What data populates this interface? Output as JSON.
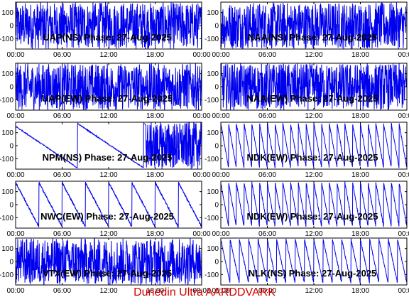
{
  "footer": "Dunedin Ultra AARDDVARK",
  "colors": {
    "trace": "#0000ee",
    "footer": "#d40000",
    "axis": "#000000"
  },
  "chart_data": [
    {
      "type": "line",
      "title": "UAP(NS) Phase: 27-Aug-2025",
      "ylim": [
        -180,
        180
      ],
      "style": "dense-noise",
      "yticks": [
        "100",
        "0",
        "-100"
      ],
      "xticks": [
        "00:00",
        "06:00",
        "12:00",
        "18:00",
        "00:00"
      ]
    },
    {
      "type": "line",
      "title": "NAA(NS) Phase: 27-Aug-2025",
      "ylim": [
        -180,
        180
      ],
      "style": "dense-noise",
      "yticks": [
        "100",
        "0",
        "-100"
      ],
      "xticks": [
        "00:00",
        "06:00",
        "12:00",
        "18:00",
        "00:00"
      ]
    },
    {
      "type": "line",
      "title": "UAP(EW) Phase: 27-Aug-2025",
      "ylim": [
        -180,
        180
      ],
      "style": "dense-noise",
      "yticks": [
        "100",
        "0",
        "-100"
      ],
      "xticks": [
        "00:00",
        "06:00",
        "12:00",
        "18:00",
        "00:00"
      ]
    },
    {
      "type": "line",
      "title": "NAA(EW) Phase: 27-Aug-2025",
      "ylim": [
        -180,
        180
      ],
      "style": "dense-noise",
      "yticks": [
        "100",
        "0",
        "-100"
      ],
      "xticks": [
        "00:00",
        "06:00",
        "12:00",
        "18:00",
        "00:00"
      ]
    },
    {
      "type": "line",
      "title": "NPM(NS) Phase: 27-Aug-2025",
      "ylim": [
        -180,
        180
      ],
      "style": "npm",
      "yticks": [
        "100",
        "0",
        "-100"
      ],
      "xticks": [
        "00:00",
        "06:00",
        "12:00",
        "18:00",
        "00:00"
      ]
    },
    {
      "type": "line",
      "title": "NDK(EW) Phase: 27-Aug-2025",
      "ylim": [
        -180,
        180
      ],
      "style": "sawtooth-fast",
      "yticks": [
        "100",
        "0",
        "-100"
      ],
      "xticks": [
        "00:00",
        "06:00",
        "12:00",
        "18:00",
        "00:00"
      ]
    },
    {
      "type": "line",
      "title": "NWC(EW) Phase: 27-Aug-2025",
      "ylim": [
        -180,
        180
      ],
      "style": "sawtooth-slow",
      "yticks": [
        "100",
        "0",
        "-100"
      ],
      "xticks": [
        "00:00",
        "06:00",
        "12:00",
        "18:00",
        "00:00"
      ]
    },
    {
      "type": "line",
      "title": "NDK(EW) Phase: 27-Aug-2025",
      "ylim": [
        -180,
        180
      ],
      "style": "sawtooth-fast",
      "yticks": [
        "100",
        "0",
        "-100"
      ],
      "xticks": [
        "00:00",
        "06:00",
        "12:00",
        "18:00",
        "00:00"
      ]
    },
    {
      "type": "line",
      "title": "VTX(EW) Phase: 27-Aug-2025",
      "ylim": [
        -180,
        180
      ],
      "style": "dense-noise",
      "yticks": [
        "100",
        "0",
        "-100"
      ],
      "xticks": [
        "00:00",
        "06:00",
        "12:00",
        "18:00",
        "00:00"
      ]
    },
    {
      "type": "line",
      "title": "NLK(NS) Phase: 27-Aug-2025",
      "ylim": [
        -180,
        180
      ],
      "style": "sawtooth-medium",
      "yticks": [
        "100",
        "0",
        "-100"
      ],
      "xticks": [
        "00:00",
        "06:00",
        "12:00",
        "18:00",
        "00:00"
      ]
    }
  ]
}
